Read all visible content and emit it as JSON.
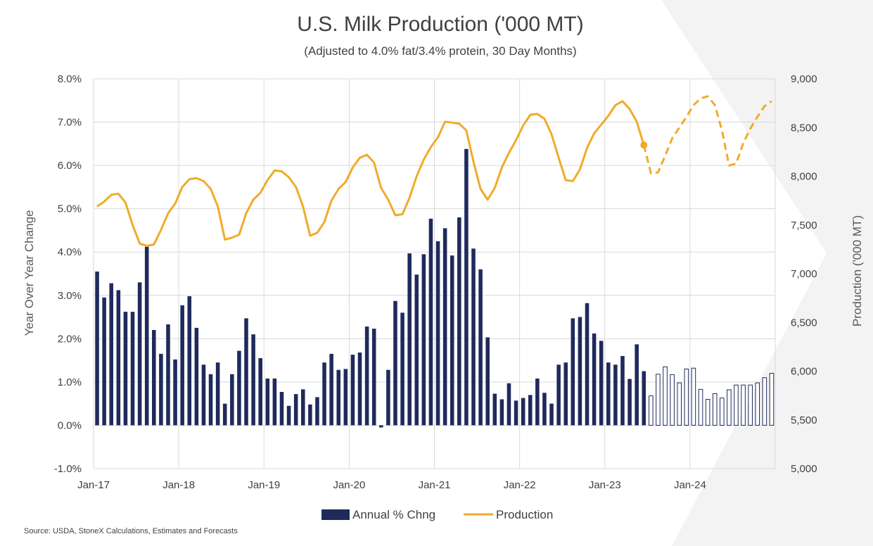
{
  "chart_data": {
    "type": "bar+line",
    "title": "U.S. Milk Production ('000 MT)",
    "subtitle": "(Adjusted to 4.0% fat/3.4% protein,  30 Day Months)",
    "ylabel_left": "Year Over Year Change",
    "ylabel_right": "Production ('000 MT)",
    "source": "Source: USDA, StoneX Calculations, Estimates and Forecasts",
    "x_tick_labels": [
      "Jan-17",
      "Jan-18",
      "Jan-19",
      "Jan-20",
      "Jan-21",
      "Jan-22",
      "Jan-23",
      "Jan-24"
    ],
    "y_left_ticks": [
      "-1.0%",
      "0.0%",
      "1.0%",
      "2.0%",
      "3.0%",
      "4.0%",
      "5.0%",
      "6.0%",
      "7.0%",
      "8.0%"
    ],
    "y_right_ticks": [
      "5,000",
      "5,500",
      "6,000",
      "6,500",
      "7,000",
      "7,500",
      "8,000",
      "8,500",
      "9,000"
    ],
    "ylim_left": [
      -1.0,
      8.0
    ],
    "ylim_right": [
      5000,
      9000
    ],
    "start_month": "Jan-17",
    "forecast_start_index": 78,
    "legend": {
      "bar": "Annual % Chng",
      "line": "Production",
      "position": "bottom"
    },
    "colors": {
      "bar": "#1f2a5c",
      "line": "#f0ab2a",
      "grid": "#d9d9d9",
      "text": "#404040"
    },
    "series": [
      {
        "name": "Annual % Chng",
        "kind": "bar",
        "values": [
          3.55,
          2.95,
          3.28,
          3.12,
          2.62,
          2.62,
          3.3,
          4.12,
          2.2,
          1.65,
          2.33,
          1.52,
          2.77,
          2.98,
          2.25,
          1.4,
          1.18,
          1.45,
          0.5,
          1.18,
          1.72,
          2.47,
          2.1,
          1.55,
          1.08,
          1.08,
          0.77,
          0.45,
          0.72,
          0.83,
          0.48,
          0.65,
          1.45,
          1.65,
          1.28,
          1.3,
          1.63,
          1.68,
          2.28,
          2.23,
          -0.05,
          1.28,
          2.87,
          2.6,
          3.97,
          3.48,
          3.95,
          4.77,
          4.25,
          4.55,
          3.92,
          4.8,
          6.38,
          4.08,
          3.6,
          2.03,
          0.73,
          0.6,
          0.97,
          0.57,
          0.63,
          0.7,
          1.08,
          0.75,
          0.5,
          1.4,
          1.45,
          2.47,
          2.5,
          2.82,
          2.12,
          1.95,
          1.45,
          1.4,
          1.6,
          1.07,
          1.87,
          1.25,
          0.68,
          1.18,
          1.35,
          1.17,
          0.98,
          1.3,
          1.32,
          0.83,
          0.6,
          0.73,
          0.63,
          0.82,
          0.93,
          0.93,
          0.93,
          0.98,
          1.1,
          1.2
        ]
      },
      {
        "name": "Production",
        "kind": "line",
        "values": [
          7690,
          7740,
          7810,
          7820,
          7730,
          7500,
          7310,
          7285,
          7300,
          7450,
          7620,
          7720,
          7890,
          7970,
          7980,
          7950,
          7870,
          7690,
          7350,
          7370,
          7400,
          7620,
          7760,
          7830,
          7960,
          8060,
          8050,
          7990,
          7890,
          7690,
          7390,
          7420,
          7530,
          7750,
          7870,
          7940,
          8090,
          8190,
          8220,
          8140,
          7880,
          7760,
          7600,
          7610,
          7780,
          8000,
          8170,
          8300,
          8400,
          8560,
          8550,
          8540,
          8470,
          8150,
          7870,
          7760,
          7880,
          8090,
          8240,
          8370,
          8520,
          8630,
          8640,
          8590,
          8430,
          8190,
          7960,
          7950,
          8070,
          8290,
          8440,
          8530,
          8620,
          8730,
          8770,
          8690,
          8560,
          8320,
          8030,
          8040,
          8210,
          8390,
          8500,
          8610,
          8730,
          8800,
          8820,
          8730,
          8470,
          8110,
          8130,
          8340,
          8490,
          8610,
          8720,
          8770
        ]
      }
    ]
  }
}
